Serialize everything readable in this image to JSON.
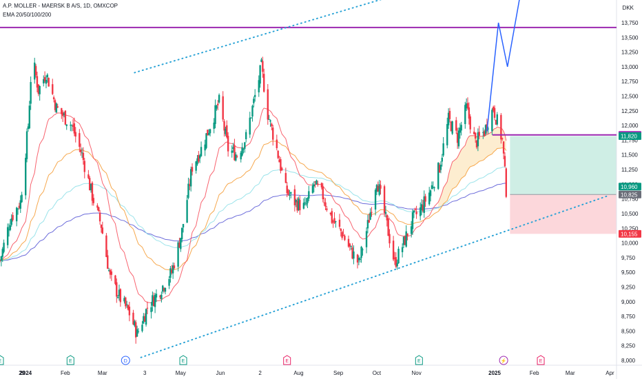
{
  "header": {
    "symbol": "A.P. MOLLER - MAERSK B A/S, 1D, OMXCOP",
    "indicator": "EMA 20/50/100/200",
    "currency": "DKK"
  },
  "colors": {
    "up": "#089981",
    "down": "#f23645",
    "level_line": "#9c27b0",
    "channel": "#2aa3d6",
    "projection": "#2962ff",
    "ema20": "#f7525f",
    "ema50": "#f59f3b",
    "ema100": "#8fe0e8",
    "ema200": "#5b5bd6",
    "target_zone": "#cfeee5",
    "stop_zone": "#fcd7db",
    "cloud": "#fde9c4"
  },
  "chart_data": {
    "type": "candlestick",
    "title": "A.P. MOLLER - MAERSK B A/S, 1D, OMXCOP",
    "y_axis": {
      "label": "DKK",
      "range": [
        8000,
        14000
      ],
      "ticks": [
        8000,
        8250,
        8500,
        8750,
        9000,
        9250,
        9500,
        9750,
        10000,
        10250,
        10500,
        10750,
        11000,
        11250,
        11500,
        11750,
        12000,
        12250,
        12500,
        12750,
        13000,
        13250,
        13500,
        13750
      ],
      "tick_labels": [
        "8,000",
        "8,250",
        "8,500",
        "8,750",
        "9,000",
        "9,250",
        "9,500",
        "9,750",
        "10,000",
        "10,250",
        "10,500",
        "10,750",
        "11,000",
        "11,250",
        "11,500",
        "11,750",
        "12,000",
        "12,250",
        "12,500",
        "12,750",
        "13,000",
        "13,250",
        "13,500",
        "13,750"
      ]
    },
    "x_axis": {
      "range": [
        "2023-12-12",
        "2025-04-26"
      ],
      "ticks": [
        {
          "date": "2023-12-29",
          "label": "29",
          "bold": false
        },
        {
          "date": "2024-01-01",
          "label": "2024",
          "bold": true
        },
        {
          "date": "2024-02-01",
          "label": "Feb",
          "bold": false
        },
        {
          "date": "2024-03-01",
          "label": "Mar",
          "bold": false
        },
        {
          "date": "2024-04-03",
          "label": "3",
          "bold": false
        },
        {
          "date": "2024-05-01",
          "label": "May",
          "bold": false
        },
        {
          "date": "2024-06-01",
          "label": "Jun",
          "bold": false
        },
        {
          "date": "2024-07-02",
          "label": "2",
          "bold": false
        },
        {
          "date": "2024-08-01",
          "label": "Aug",
          "bold": false
        },
        {
          "date": "2024-09-01",
          "label": "Sep",
          "bold": false
        },
        {
          "date": "2024-10-01",
          "label": "Oct",
          "bold": false
        },
        {
          "date": "2024-11-01",
          "label": "Nov",
          "bold": false
        },
        {
          "date": "2025-01-01",
          "label": "2025",
          "bold": true
        },
        {
          "date": "2025-02-01",
          "label": "Feb",
          "bold": false
        },
        {
          "date": "2025-03-01",
          "label": "Mar",
          "bold": false
        },
        {
          "date": "2025-04-01",
          "label": "Apr",
          "bold": false
        }
      ]
    },
    "price_trajectory": [
      {
        "date": "2023-12-12",
        "close": 9700
      },
      {
        "date": "2023-12-20",
        "close": 10400
      },
      {
        "date": "2023-12-28",
        "close": 10700
      },
      {
        "date": "2024-01-03",
        "close": 12000
      },
      {
        "date": "2024-01-06",
        "close": 13200
      },
      {
        "date": "2024-01-11",
        "close": 12600
      },
      {
        "date": "2024-01-17",
        "close": 12900
      },
      {
        "date": "2024-01-25",
        "close": 12300
      },
      {
        "date": "2024-02-06",
        "close": 12000
      },
      {
        "date": "2024-02-14",
        "close": 11500
      },
      {
        "date": "2024-02-22",
        "close": 10800
      },
      {
        "date": "2024-02-29",
        "close": 10300
      },
      {
        "date": "2024-03-07",
        "close": 9400
      },
      {
        "date": "2024-03-15",
        "close": 9050
      },
      {
        "date": "2024-03-22",
        "close": 8800
      },
      {
        "date": "2024-03-28",
        "close": 8450
      },
      {
        "date": "2024-04-05",
        "close": 8900
      },
      {
        "date": "2024-04-15",
        "close": 9200
      },
      {
        "date": "2024-04-24",
        "close": 9500
      },
      {
        "date": "2024-05-02",
        "close": 10200
      },
      {
        "date": "2024-05-10",
        "close": 11300
      },
      {
        "date": "2024-05-17",
        "close": 11600
      },
      {
        "date": "2024-05-24",
        "close": 12000
      },
      {
        "date": "2024-05-31",
        "close": 12400
      },
      {
        "date": "2024-06-07",
        "close": 11600
      },
      {
        "date": "2024-06-14",
        "close": 11500
      },
      {
        "date": "2024-06-21",
        "close": 11800
      },
      {
        "date": "2024-06-28",
        "close": 12500
      },
      {
        "date": "2024-07-03",
        "close": 13000
      },
      {
        "date": "2024-07-08",
        "close": 12200
      },
      {
        "date": "2024-07-15",
        "close": 11600
      },
      {
        "date": "2024-07-22",
        "close": 10900
      },
      {
        "date": "2024-07-29",
        "close": 10700
      },
      {
        "date": "2024-08-06",
        "close": 10600
      },
      {
        "date": "2024-08-13",
        "close": 11000
      },
      {
        "date": "2024-08-20",
        "close": 10800
      },
      {
        "date": "2024-08-27",
        "close": 10400
      },
      {
        "date": "2024-09-03",
        "close": 10200
      },
      {
        "date": "2024-09-10",
        "close": 9900
      },
      {
        "date": "2024-09-17",
        "close": 9650
      },
      {
        "date": "2024-09-24",
        "close": 10300
      },
      {
        "date": "2024-10-01",
        "close": 11100
      },
      {
        "date": "2024-10-08",
        "close": 10400
      },
      {
        "date": "2024-10-15",
        "close": 9650
      },
      {
        "date": "2024-10-22",
        "close": 10000
      },
      {
        "date": "2024-10-29",
        "close": 10400
      },
      {
        "date": "2024-11-05",
        "close": 10600
      },
      {
        "date": "2024-11-12",
        "close": 10900
      },
      {
        "date": "2024-11-19",
        "close": 11300
      },
      {
        "date": "2024-11-26",
        "close": 12100
      },
      {
        "date": "2024-12-03",
        "close": 11800
      },
      {
        "date": "2024-12-10",
        "close": 12300
      },
      {
        "date": "2024-12-17",
        "close": 11700
      },
      {
        "date": "2024-12-24",
        "close": 11900
      },
      {
        "date": "2024-12-31",
        "close": 12300
      },
      {
        "date": "2025-01-07",
        "close": 11750
      },
      {
        "date": "2025-01-10",
        "close": 10900
      }
    ],
    "horizontal_levels": [
      {
        "name": "resistance",
        "value": 13670,
        "label": "13,670",
        "to_date": null
      },
      {
        "name": "breakdown",
        "value": 11840,
        "label": "11,840",
        "to_date": "2025-01-10"
      }
    ],
    "price_labels": [
      {
        "value": 11840,
        "label": "11,840",
        "color": "#9c27b0"
      },
      {
        "value": 11820,
        "label": "11,820",
        "color": "#089981"
      },
      {
        "value": 10960,
        "label": "10,960",
        "color": "#089981"
      },
      {
        "value": 10825,
        "label": "10,825",
        "color": "#6a6d78"
      },
      {
        "value": 10155,
        "label": "10,155",
        "color": "#f23645"
      }
    ],
    "channel_lines": [
      {
        "name": "upper-channel",
        "from": {
          "date": "2024-03-26",
          "value": 12900
        },
        "to": {
          "date": "2024-11-28",
          "value": 14500
        }
      },
      {
        "name": "lower-channel",
        "from": {
          "date": "2024-03-31",
          "value": 8050
        },
        "to": {
          "date": "2025-03-30",
          "value": 10800
        }
      }
    ],
    "projection_path": [
      {
        "date": "2024-12-26",
        "value": 11900
      },
      {
        "date": "2025-01-04",
        "value": 13750
      },
      {
        "date": "2025-01-11",
        "value": 13000
      },
      {
        "date": "2025-01-24",
        "value": 14600
      }
    ],
    "position": {
      "type": "short",
      "start": "2025-01-13",
      "end": "2025-04-06",
      "entry": 10825,
      "target": 11820,
      "stop": 10155
    },
    "event_markers": [
      {
        "date": "2023-12-12",
        "label": "E",
        "kind": "earnings"
      },
      {
        "date": "2024-02-05",
        "label": "E",
        "kind": "earnings"
      },
      {
        "date": "2024-03-19",
        "label": "D",
        "kind": "dividend"
      },
      {
        "date": "2024-05-03",
        "label": "E",
        "kind": "earnings"
      },
      {
        "date": "2024-07-23",
        "label": "E",
        "kind": "earnings_future"
      },
      {
        "date": "2024-11-03",
        "label": "E",
        "kind": "earnings"
      },
      {
        "date": "2025-01-08",
        "label": "⚡",
        "kind": "flash"
      },
      {
        "date": "2025-02-06",
        "label": "E",
        "kind": "earnings_future"
      }
    ]
  }
}
